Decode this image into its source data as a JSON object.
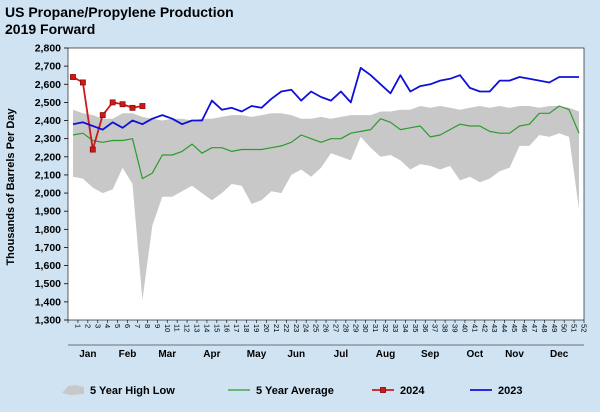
{
  "chart_data": {
    "type": "line",
    "title": "US Propane/Propylene Production",
    "subtitle": "2019 Forward",
    "ylabel": "Thousands of Barrels Per Day",
    "xlabel": "",
    "ylim": [
      1300,
      2800
    ],
    "yticks": [
      "1,300",
      "1,400",
      "1,500",
      "1,600",
      "1,700",
      "1,800",
      "1,900",
      "2,000",
      "2,100",
      "2,200",
      "2,300",
      "2,400",
      "2,500",
      "2,600",
      "2,700",
      "2,800"
    ],
    "x_ticks": [
      "1",
      "2",
      "3",
      "4",
      "5",
      "6",
      "7",
      "8",
      "9",
      "10",
      "11",
      "12",
      "13",
      "14",
      "15",
      "16",
      "17",
      "18",
      "19",
      "20",
      "21",
      "22",
      "23",
      "24",
      "25",
      "26",
      "27",
      "28",
      "29",
      "30",
      "31",
      "32",
      "33",
      "34",
      "35",
      "36",
      "37",
      "38",
      "39",
      "40",
      "41",
      "42",
      "43",
      "44",
      "45",
      "46",
      "47",
      "48",
      "49",
      "50",
      "51",
      "52"
    ],
    "months": [
      {
        "label": "Jan",
        "week": 2.5
      },
      {
        "label": "Feb",
        "week": 6.5
      },
      {
        "label": "Mar",
        "week": 10.5
      },
      {
        "label": "Apr",
        "week": 15
      },
      {
        "label": "May",
        "week": 19.5
      },
      {
        "label": "Jun",
        "week": 23.5
      },
      {
        "label": "Jul",
        "week": 28
      },
      {
        "label": "Aug",
        "week": 32.5
      },
      {
        "label": "Sep",
        "week": 37
      },
      {
        "label": "Oct",
        "week": 41.5
      },
      {
        "label": "Nov",
        "week": 45.5
      },
      {
        "label": "Dec",
        "week": 50
      }
    ],
    "band": {
      "name": "5 Year High Low",
      "high": [
        2460,
        2440,
        2430,
        2410,
        2410,
        2440,
        2440,
        2420,
        2410,
        2400,
        2410,
        2410,
        2400,
        2410,
        2410,
        2420,
        2430,
        2430,
        2420,
        2430,
        2440,
        2440,
        2430,
        2410,
        2410,
        2420,
        2410,
        2420,
        2430,
        2430,
        2430,
        2450,
        2450,
        2460,
        2460,
        2480,
        2470,
        2480,
        2470,
        2460,
        2470,
        2480,
        2470,
        2480,
        2470,
        2480,
        2480,
        2470,
        2480,
        2480,
        2470,
        2450
      ],
      "low": [
        2090,
        2080,
        2030,
        2000,
        2020,
        2140,
        2050,
        1410,
        1820,
        1980,
        1980,
        2010,
        2040,
        2000,
        1960,
        2000,
        2050,
        2040,
        1940,
        1960,
        2010,
        2000,
        2100,
        2130,
        2090,
        2140,
        2220,
        2200,
        2180,
        2310,
        2250,
        2200,
        2210,
        2180,
        2130,
        2160,
        2150,
        2130,
        2150,
        2070,
        2090,
        2060,
        2080,
        2120,
        2140,
        2260,
        2260,
        2320,
        2310,
        2330,
        2310,
        1910
      ]
    },
    "series": [
      {
        "name": "5 Year Average",
        "color": "#2e9a2e",
        "x": [
          1,
          2,
          3,
          4,
          5,
          6,
          7,
          8,
          9,
          10,
          11,
          12,
          13,
          14,
          15,
          16,
          17,
          18,
          19,
          20,
          21,
          22,
          23,
          24,
          25,
          26,
          27,
          28,
          29,
          30,
          31,
          32,
          33,
          34,
          35,
          36,
          37,
          38,
          39,
          40,
          41,
          42,
          43,
          44,
          45,
          46,
          47,
          48,
          49,
          50,
          51,
          52
        ],
        "values": [
          2320,
          2330,
          2290,
          2280,
          2290,
          2290,
          2300,
          2080,
          2110,
          2210,
          2210,
          2230,
          2270,
          2220,
          2250,
          2250,
          2230,
          2240,
          2240,
          2240,
          2250,
          2260,
          2280,
          2320,
          2300,
          2280,
          2300,
          2300,
          2330,
          2340,
          2350,
          2410,
          2390,
          2350,
          2360,
          2370,
          2310,
          2320,
          2350,
          2380,
          2370,
          2370,
          2340,
          2330,
          2330,
          2370,
          2380,
          2440,
          2440,
          2480,
          2460,
          2330
        ]
      },
      {
        "name": "2024",
        "color": "#cc1a1a",
        "x": [
          1,
          2,
          3,
          4,
          5,
          6,
          7,
          8
        ],
        "values": [
          2640,
          2610,
          2240,
          2430,
          2500,
          2490,
          2470,
          2480
        ]
      },
      {
        "name": "2023",
        "color": "#1010d8",
        "x": [
          1,
          2,
          3,
          4,
          5,
          6,
          7,
          8,
          9,
          10,
          11,
          12,
          13,
          14,
          15,
          16,
          17,
          18,
          19,
          20,
          21,
          22,
          23,
          24,
          25,
          26,
          27,
          28,
          29,
          30,
          31,
          32,
          33,
          34,
          35,
          36,
          37,
          38,
          39,
          40,
          41,
          42,
          43,
          44,
          45,
          46,
          47,
          48,
          49,
          50,
          51,
          52
        ],
        "values": [
          2380,
          2390,
          2370,
          2350,
          2390,
          2360,
          2400,
          2380,
          2410,
          2430,
          2410,
          2380,
          2400,
          2400,
          2510,
          2460,
          2470,
          2450,
          2480,
          2470,
          2520,
          2560,
          2570,
          2510,
          2560,
          2530,
          2510,
          2560,
          2500,
          2690,
          2650,
          2600,
          2550,
          2650,
          2560,
          2590,
          2600,
          2620,
          2630,
          2650,
          2580,
          2560,
          2560,
          2620,
          2620,
          2640,
          2630,
          2620,
          2610,
          2640,
          2640,
          2640
        ]
      }
    ],
    "legend": {
      "placement": "bottom",
      "items": [
        {
          "label": "5 Year High Low",
          "kind": "area",
          "color": "#c8c8c8"
        },
        {
          "label": "5 Year Average",
          "kind": "line",
          "color": "#2e9a2e"
        },
        {
          "label": "2024",
          "kind": "line-marker",
          "color": "#cc1a1a"
        },
        {
          "label": "2023",
          "kind": "line",
          "color": "#1010d8"
        }
      ]
    },
    "colors": {
      "background": "#cfe3f3",
      "plot_background": "#ffffff"
    }
  }
}
